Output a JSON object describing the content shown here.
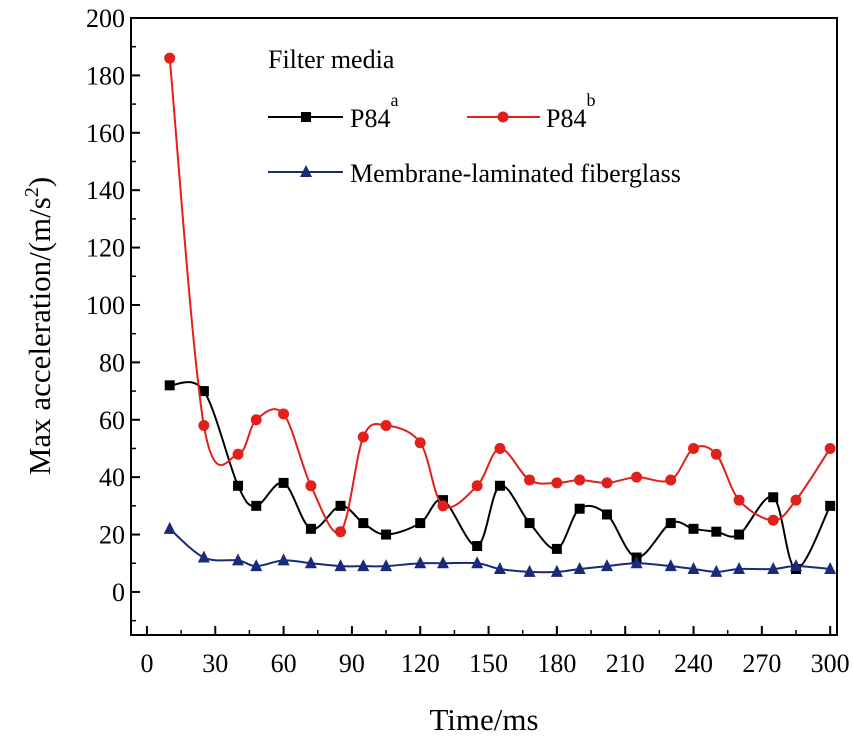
{
  "chart_data": {
    "type": "line",
    "title": "",
    "xlabel": "Time/ms",
    "ylabel": "Max acceleration/(m/s",
    "ylabel_sup": "2",
    "ylabel_close": ")",
    "xlim": [
      -7,
      303
    ],
    "ylim": [
      -15,
      200
    ],
    "xticks": [
      0,
      30,
      60,
      90,
      120,
      150,
      180,
      210,
      240,
      270,
      300
    ],
    "yticks": [
      0,
      20,
      40,
      60,
      80,
      100,
      120,
      140,
      160,
      180,
      200
    ],
    "legend_title": "Filter media",
    "legend_position": "top-right",
    "series": [
      {
        "name": "P84",
        "sup": "a",
        "color": "#000000",
        "marker": "square",
        "x": [
          10,
          25,
          40,
          48,
          60,
          72,
          85,
          95,
          105,
          120,
          130,
          145,
          155,
          168,
          180,
          190,
          202,
          215,
          230,
          240,
          250,
          260,
          275,
          285,
          300
        ],
        "y": [
          72,
          70,
          37,
          30,
          38,
          22,
          30,
          24,
          20,
          24,
          32,
          16,
          37,
          24,
          15,
          29,
          27,
          12,
          24,
          22,
          21,
          20,
          33,
          8,
          30
        ]
      },
      {
        "name": "P84",
        "sup": "b",
        "color": "#e0201b",
        "marker": "circle",
        "x": [
          10,
          25,
          40,
          48,
          60,
          72,
          85,
          95,
          105,
          120,
          130,
          145,
          155,
          168,
          180,
          190,
          202,
          215,
          230,
          240,
          250,
          260,
          275,
          285,
          300
        ],
        "y": [
          186,
          58,
          48,
          60,
          62,
          37,
          21,
          54,
          58,
          52,
          30,
          37,
          50,
          39,
          38,
          39,
          38,
          40,
          39,
          50,
          48,
          32,
          25,
          32,
          50
        ]
      },
      {
        "name": "Membrane-laminated fiberglass",
        "sup": "",
        "color": "#1a2a7a",
        "marker": "triangle",
        "x": [
          10,
          25,
          40,
          48,
          60,
          72,
          85,
          95,
          105,
          120,
          130,
          145,
          155,
          168,
          180,
          190,
          202,
          215,
          230,
          240,
          250,
          260,
          275,
          285,
          300
        ],
        "y": [
          22,
          12,
          11,
          9,
          11,
          10,
          9,
          9,
          9,
          10,
          10,
          10,
          8,
          7,
          7,
          8,
          9,
          10,
          9,
          8,
          7,
          8,
          8,
          9,
          8
        ]
      }
    ]
  }
}
